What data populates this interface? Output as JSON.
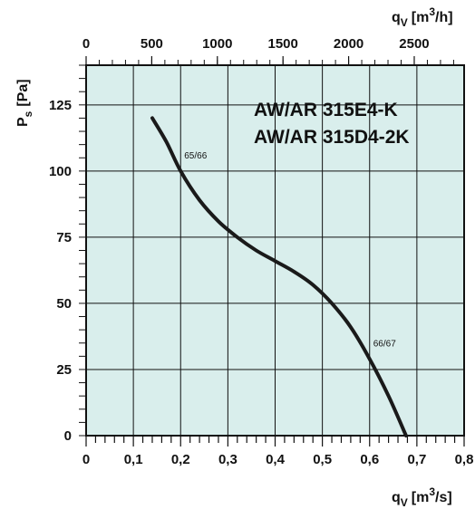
{
  "chart_data": {
    "type": "line",
    "title_lines": [
      "AW/AR 315E4-K",
      "AW/AR 315D4-2K"
    ],
    "xlabel": {
      "main": "q",
      "sub": "V",
      "unit": "[m",
      "sup": "3",
      "unit_end": "/s]"
    },
    "x2label": {
      "main": "q",
      "sub": "V",
      "unit": "[m",
      "sup": "3",
      "unit_end": "/h]"
    },
    "ylabel": {
      "main": "P",
      "sub": "s",
      "unit": "[Pa]"
    },
    "xlim": [
      0,
      0.8
    ],
    "ylim": [
      0,
      140
    ],
    "x2lim": [
      0,
      2880
    ],
    "x_ticks": [
      "0",
      "0,1",
      "0,2",
      "0,3",
      "0,4",
      "0,5",
      "0,6",
      "0,7",
      "0,8"
    ],
    "x2_ticks": [
      "0",
      "500",
      "1000",
      "1500",
      "2000",
      "2500"
    ],
    "y_ticks": [
      "0",
      "25",
      "50",
      "75",
      "100",
      "125"
    ],
    "grid": true,
    "plot_background": "#d9eeec",
    "line_color": "#1a1a1a",
    "series": [
      {
        "x": [
          0.14,
          0.17,
          0.2,
          0.24,
          0.28,
          0.32,
          0.36,
          0.4,
          0.44,
          0.48,
          0.52,
          0.56,
          0.6,
          0.64,
          0.677
        ],
        "y": [
          120,
          111,
          100,
          89,
          81,
          75,
          70,
          66,
          62,
          57,
          50,
          41,
          29,
          15,
          0
        ]
      }
    ],
    "annotations": [
      {
        "text": "65/66",
        "x": 0.2,
        "y": 100
      },
      {
        "text": "66/67",
        "x": 0.6,
        "y": 29
      }
    ]
  }
}
